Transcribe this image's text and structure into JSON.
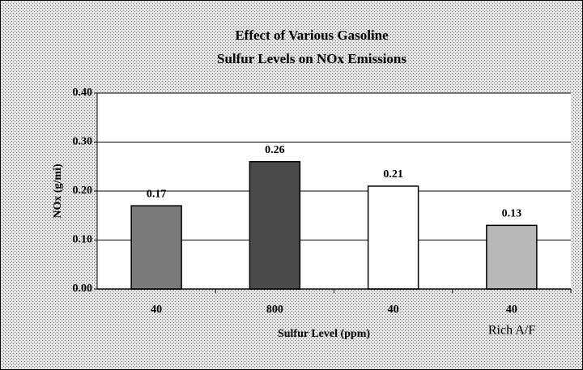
{
  "chart_data": {
    "type": "bar",
    "title": [
      "Effect of Various Gasoline",
      "Sulfur Levels on NOx Emissions"
    ],
    "x_label": "Sulfur Level (ppm)",
    "y_label": "NOx (g/mi)",
    "annotation": "Rich A/F",
    "categories": [
      "40",
      "800",
      "40",
      "40"
    ],
    "values": [
      0.17,
      0.26,
      0.21,
      0.13
    ],
    "colors": [
      "#7a7a7a",
      "#4a4a4a",
      "#ffffff",
      "#b8b8b8"
    ],
    "ylim": [
      0,
      0.4
    ],
    "yticks": [
      {
        "value": 0,
        "label": "0.00"
      },
      {
        "value": 0.1,
        "label": "0.10"
      },
      {
        "value": 0.2,
        "label": "0.20"
      },
      {
        "value": 0.3,
        "label": "0.30"
      },
      {
        "value": 0.4,
        "label": "0.40"
      }
    ],
    "grid": true
  }
}
